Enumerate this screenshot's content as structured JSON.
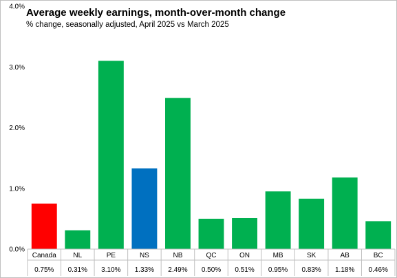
{
  "chart_data": {
    "type": "bar",
    "title": "Average weekly earnings, month-over-month change",
    "subtitle": "% change, seasonally adjusted, April 2025 vs March 2025",
    "categories": [
      "Canada",
      "NL",
      "PE",
      "NS",
      "NB",
      "QC",
      "ON",
      "MB",
      "SK",
      "AB",
      "BC"
    ],
    "values": [
      0.75,
      0.31,
      3.1,
      1.33,
      2.49,
      0.5,
      0.51,
      0.95,
      0.83,
      1.18,
      0.46
    ],
    "value_labels": [
      "0.75%",
      "0.31%",
      "3.10%",
      "1.33%",
      "2.49%",
      "0.50%",
      "0.51%",
      "0.95%",
      "0.83%",
      "1.18%",
      "0.46%"
    ],
    "bar_colors": [
      "#ff0000",
      "#00b050",
      "#00b050",
      "#0070c0",
      "#00b050",
      "#00b050",
      "#00b050",
      "#00b050",
      "#00b050",
      "#00b050",
      "#00b050"
    ],
    "ylim": [
      0,
      4
    ],
    "yticks": [
      0,
      1,
      2,
      3,
      4
    ],
    "ytick_labels": [
      "0.0%",
      "1.0%",
      "2.0%",
      "3.0%",
      "4.0%"
    ],
    "grid": false,
    "data_table": true
  }
}
